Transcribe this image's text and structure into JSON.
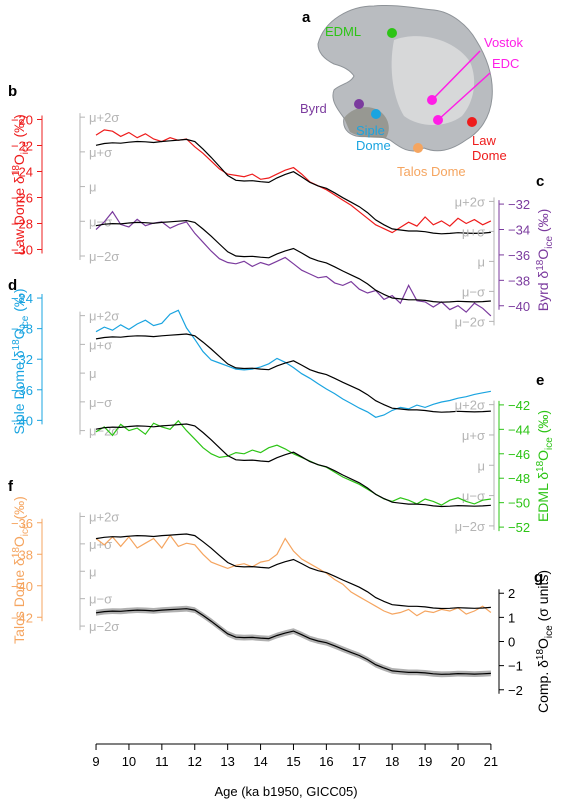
{
  "chart_data": {
    "type": "line",
    "x": [
      9.0,
      9.25,
      9.5,
      9.75,
      10.0,
      10.25,
      10.5,
      10.75,
      11.0,
      11.25,
      11.5,
      11.75,
      12.0,
      12.25,
      12.5,
      12.75,
      13.0,
      13.25,
      13.5,
      13.75,
      14.0,
      14.25,
      14.5,
      14.75,
      15.0,
      15.25,
      15.5,
      15.75,
      16.0,
      16.25,
      16.5,
      16.75,
      17.0,
      17.25,
      17.5,
      17.75,
      18.0,
      18.25,
      18.5,
      18.75,
      19.0,
      19.25,
      19.5,
      19.75,
      20.0,
      20.25,
      20.5,
      20.75,
      21.0
    ],
    "xlim": [
      8.3,
      21.55
    ],
    "xticks": [
      "9",
      "10",
      "11",
      "12",
      "13",
      "14",
      "15",
      "16",
      "17",
      "18",
      "19",
      "20",
      "21"
    ],
    "xlabel": "Age (ka b1950, GICC05)",
    "sigma_ticks": [
      "μ+2σ",
      "μ+σ",
      "μ",
      "μ−σ",
      "μ−2σ"
    ],
    "sigma_values": [
      2,
      1,
      0,
      -1,
      -2
    ],
    "composite": [
      1.19,
      1.24,
      1.26,
      1.25,
      1.28,
      1.3,
      1.29,
      1.27,
      1.3,
      1.32,
      1.34,
      1.36,
      1.3,
      1.08,
      0.84,
      0.58,
      0.32,
      0.18,
      0.16,
      0.17,
      0.14,
      0.12,
      0.25,
      0.35,
      0.43,
      0.28,
      0.12,
      0.02,
      -0.05,
      -0.18,
      -0.32,
      -0.45,
      -0.58,
      -0.75,
      -0.96,
      -1.1,
      -1.22,
      -1.25,
      -1.28,
      -1.28,
      -1.3,
      -1.34,
      -1.36,
      -1.35,
      -1.33,
      -1.34,
      -1.35,
      -1.34,
      -1.32
    ],
    "panels": [
      {
        "label": "b",
        "name": "Law Dome",
        "color": "#ee1c1c",
        "side": "left",
        "ylim": [
          -30.5,
          -19.5
        ],
        "ticks": [
          "-20",
          "-22",
          "-24",
          "-26",
          "-28",
          "-30"
        ],
        "mu": -25.16,
        "sigma": 2.67,
        "values": [
          -21.2,
          -20.8,
          -20.9,
          -21.3,
          -21.0,
          -21.4,
          -21.1,
          -21.5,
          -21.7,
          -21.4,
          -21.6,
          -21.5,
          -22.1,
          -22.6,
          -23.2,
          -23.8,
          -24.2,
          -24.3,
          -24.4,
          -24.2,
          -24.6,
          -24.5,
          -24.2,
          -23.9,
          -23.7,
          -24.2,
          -24.8,
          -25.1,
          -25.4,
          -25.8,
          -26.2,
          -26.6,
          -27.1,
          -27.6,
          -28.1,
          -28.4,
          -28.7,
          -28.3,
          -27.9,
          -28.2,
          -27.5,
          -28.1,
          -27.8,
          -28.2,
          -27.6,
          -28.0,
          -27.7,
          -28.1,
          -27.8
        ]
      },
      {
        "label": "c",
        "name": "Byrd",
        "color": "#7b3b9e",
        "side": "right",
        "ylim": [
          -41.2,
          -31.6
        ],
        "ticks": [
          "-32",
          "-34",
          "-36",
          "-38",
          "-40"
        ],
        "mu": -36.51,
        "sigma": 2.36,
        "values": [
          -34.0,
          -33.4,
          -32.6,
          -33.6,
          -33.8,
          -33.2,
          -33.7,
          -33.5,
          -33.4,
          -33.9,
          -33.6,
          -33.4,
          -34.3,
          -35.0,
          -35.7,
          -36.3,
          -36.6,
          -36.7,
          -36.5,
          -36.9,
          -36.6,
          -36.8,
          -36.5,
          -36.2,
          -36.7,
          -37.2,
          -37.5,
          -37.8,
          -37.7,
          -38.2,
          -38.4,
          -38.1,
          -38.7,
          -39.0,
          -38.8,
          -39.5,
          -39.2,
          -39.8,
          -38.4,
          -39.6,
          -39.7,
          -40.1,
          -39.7,
          -40.3,
          -40.0,
          -40.5,
          -39.8,
          -40.2,
          -40.8
        ]
      },
      {
        "label": "d",
        "name": "Siple Dome",
        "color": "#1aa4e0",
        "side": "left",
        "ylim": [
          -41.0,
          -23.6
        ],
        "ticks": [
          "-24",
          "-28",
          "-32",
          "-36",
          "-40"
        ],
        "mu": -33.82,
        "sigma": 3.76,
        "values": [
          -28.4,
          -27.8,
          -28.2,
          -27.5,
          -28.1,
          -27.4,
          -26.9,
          -27.6,
          -27.3,
          -26.1,
          -25.6,
          -27.9,
          -29.4,
          -31.0,
          -32.1,
          -32.5,
          -32.9,
          -33.3,
          -33.4,
          -33.3,
          -33.0,
          -32.6,
          -31.9,
          -32.4,
          -33.1,
          -33.9,
          -34.5,
          -35.2,
          -35.9,
          -36.5,
          -37.2,
          -37.8,
          -38.4,
          -38.9,
          -39.6,
          -39.3,
          -38.7,
          -38.3,
          -38.5,
          -38.0,
          -38.3,
          -37.9,
          -37.6,
          -37.4,
          -37.1,
          -36.9,
          -36.6,
          -36.4,
          -36.2
        ]
      },
      {
        "label": "e",
        "name": "EDML",
        "color": "#2cc415",
        "side": "right",
        "ylim": [
          -52.4,
          -41.6
        ],
        "ticks": [
          "-42",
          "-44",
          "-46",
          "-48",
          "-50",
          "-52"
        ],
        "mu": -46.94,
        "sigma": 2.48,
        "values": [
          -44.2,
          -43.8,
          -44.5,
          -43.6,
          -44.1,
          -43.9,
          -44.4,
          -43.5,
          -43.8,
          -44.0,
          -43.3,
          -44.1,
          -44.8,
          -45.5,
          -46.0,
          -46.3,
          -46.2,
          -45.9,
          -46.0,
          -45.7,
          -45.9,
          -45.5,
          -45.3,
          -45.6,
          -46.0,
          -46.3,
          -46.6,
          -46.9,
          -47.1,
          -47.5,
          -47.9,
          -48.2,
          -48.5,
          -48.9,
          -49.3,
          -49.7,
          -49.9,
          -49.6,
          -49.8,
          -50.1,
          -49.7,
          -49.9,
          -50.2,
          -49.8,
          -49.6,
          -49.9,
          -50.1,
          -49.8,
          -49.7
        ]
      },
      {
        "label": "f",
        "name": "Talos Dome",
        "color": "#f5a560",
        "side": "left",
        "ylim": [
          -43.0,
          -35.0
        ],
        "ticks": [
          "-36",
          "-38",
          "-40",
          "-42"
        ],
        "mu": -39.08,
        "sigma": 1.74,
        "values": [
          -37.0,
          -37.4,
          -36.9,
          -37.5,
          -36.9,
          -37.6,
          -37.3,
          -37.0,
          -37.6,
          -36.8,
          -37.5,
          -37.3,
          -37.4,
          -38.0,
          -38.5,
          -38.7,
          -38.9,
          -38.7,
          -38.6,
          -38.8,
          -38.5,
          -38.4,
          -38.0,
          -37.0,
          -37.8,
          -38.3,
          -38.6,
          -38.9,
          -39.2,
          -39.6,
          -39.9,
          -40.4,
          -40.7,
          -41.0,
          -41.3,
          -41.6,
          -41.8,
          -41.7,
          -41.5,
          -41.9,
          -41.6,
          -41.7,
          -41.5,
          -41.6,
          -41.4,
          -41.8,
          -41.6,
          -41.3,
          -41.7
        ]
      }
    ],
    "comp_panel": {
      "label": "g",
      "ylabel": "Comp. δ18O ice (σ units)",
      "ylim": [
        -2.3,
        2.3
      ],
      "ticks": [
        "2",
        "1",
        "0",
        "-1",
        "-2"
      ],
      "ylabel_main": "Comp. δ",
      "ylabel_unit": " (σ units)"
    },
    "map": {
      "label": "a",
      "sites": [
        {
          "name": "EDML",
          "color": "#2cc415"
        },
        {
          "name": "Vostok",
          "color": "#ff1ee6"
        },
        {
          "name": "EDC",
          "color": "#ff1ee6"
        },
        {
          "name": "Byrd",
          "color": "#7b3b9e"
        },
        {
          "name": "Siple Dome",
          "color": "#1aa4e0"
        },
        {
          "name": "Talos Dome",
          "color": "#f5a560"
        },
        {
          "name": "Law Dome",
          "color": "#ee1c1c"
        }
      ]
    }
  }
}
